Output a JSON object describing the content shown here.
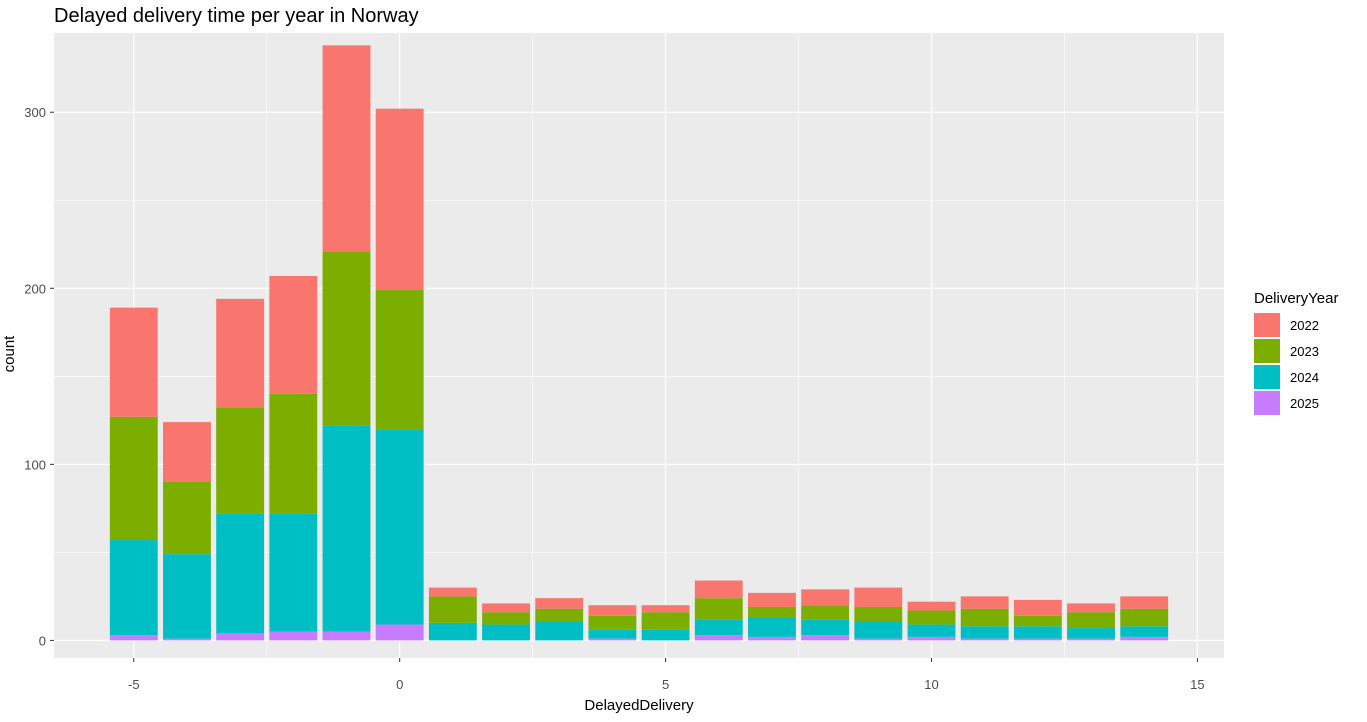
{
  "chart_data": {
    "type": "bar",
    "stacked": true,
    "title": "Delayed delivery time per year in Norway",
    "xlabel": "DelayedDelivery",
    "ylabel": "count",
    "xlim": [
      -6.5,
      15.5
    ],
    "ylim": [
      -10,
      345
    ],
    "x_ticks": [
      -5,
      0,
      5,
      10,
      15
    ],
    "x_tick_labels": [
      "-5",
      "0",
      "5",
      "10",
      "15"
    ],
    "y_ticks": [
      0,
      100,
      200,
      300
    ],
    "y_tick_labels": [
      "0",
      "100",
      "200",
      "300"
    ],
    "grid": true,
    "background": "#ebebeb",
    "legend": {
      "title": "DeliveryYear",
      "position": "right"
    },
    "x": [
      -5,
      -4,
      -3,
      -2,
      -1,
      0,
      1,
      2,
      3,
      4,
      5,
      6,
      7,
      8,
      9,
      10,
      11,
      12,
      13,
      14
    ],
    "series": [
      {
        "name": "2025",
        "color": "#c77cff",
        "values": [
          3,
          1,
          4,
          5,
          5,
          9,
          0,
          0,
          0,
          1,
          0,
          3,
          2,
          3,
          1,
          2,
          1,
          1,
          1,
          2
        ]
      },
      {
        "name": "2024",
        "color": "#00bfc4",
        "values": [
          54,
          48,
          68,
          67,
          117,
          111,
          10,
          9,
          11,
          5,
          6,
          9,
          11,
          9,
          10,
          7,
          7,
          7,
          6,
          6
        ]
      },
      {
        "name": "2023",
        "color": "#7cae00",
        "values": [
          70,
          41,
          60,
          68,
          99,
          79,
          15,
          7,
          7,
          8,
          10,
          12,
          6,
          8,
          8,
          8,
          10,
          6,
          9,
          10
        ]
      },
      {
        "name": "2022",
        "color": "#f8766d",
        "values": [
          62,
          34,
          62,
          67,
          117,
          103,
          5,
          5,
          6,
          6,
          4,
          10,
          8,
          9,
          11,
          5,
          7,
          9,
          5,
          7
        ]
      }
    ]
  }
}
